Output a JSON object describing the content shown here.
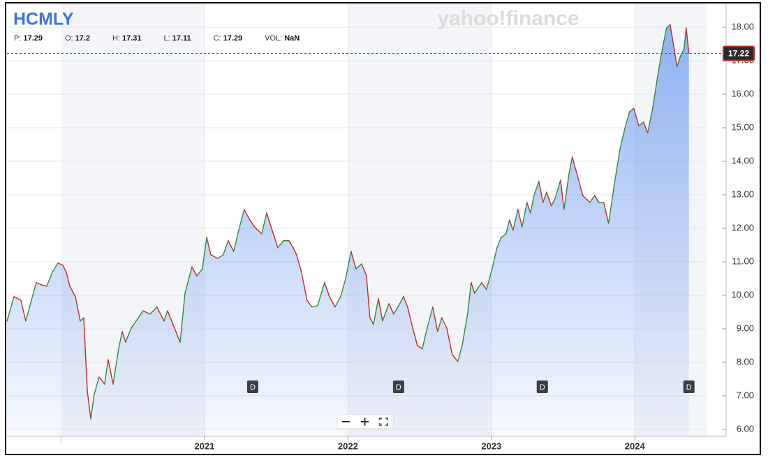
{
  "chart_data": {
    "type": "line",
    "title": "HCMLY",
    "watermark": "yahoo!finance",
    "quote": [
      {
        "label": "P:",
        "value": 17.29
      },
      {
        "label": "O:",
        "value": 17.2
      },
      {
        "label": "H:",
        "value": 17.31
      },
      {
        "label": "L:",
        "value": 17.11
      },
      {
        "label": "C:",
        "value": 17.29
      },
      {
        "label": "VOL:",
        "value": "NaN"
      }
    ],
    "last_price": 17.22,
    "up_color": "#2e8b3a",
    "down_color": "#c8281e",
    "area_color": "#6f9bf0",
    "last_price_color": "#c8281e",
    "grid": true,
    "xlim": [
      2019.623,
      2024.5
    ],
    "xticks": [
      2021,
      2022,
      2023,
      2024
    ],
    "ylim": [
      5.79,
      18.71
    ],
    "yticks": [
      {
        "value": 6,
        "label": "6.00"
      },
      {
        "value": 7,
        "label": "7.00"
      },
      {
        "value": 8,
        "label": "8.00"
      },
      {
        "value": 9,
        "label": "9.00"
      },
      {
        "value": 10,
        "label": "10.00"
      },
      {
        "value": 11,
        "label": "11.00"
      },
      {
        "value": 12,
        "label": "12.00"
      },
      {
        "value": 13,
        "label": "13.00"
      },
      {
        "value": 14,
        "label": "14.00"
      },
      {
        "value": 15,
        "label": "15.00"
      },
      {
        "value": 16,
        "label": "16.00"
      },
      {
        "value": 17,
        "label": "17.00"
      },
      {
        "value": 18,
        "label": "18.00"
      }
    ],
    "events": [
      {
        "x": 2021.336,
        "label": "D"
      },
      {
        "x": 2022.353,
        "label": "D"
      },
      {
        "x": 2023.355,
        "label": "D"
      },
      {
        "x": 2024.377,
        "label": "D"
      }
    ],
    "x": [
      2019.623,
      2019.672,
      2019.72,
      2019.754,
      2019.793,
      2019.827,
      2019.866,
      2019.9,
      2019.939,
      2019.978,
      2020.012,
      2020.037,
      2020.061,
      2020.1,
      2020.134,
      2020.158,
      2020.183,
      2020.207,
      2020.231,
      2020.265,
      2020.304,
      2020.328,
      2020.363,
      2020.401,
      2020.426,
      2020.45,
      2020.489,
      2020.523,
      2020.572,
      2020.62,
      2020.669,
      2020.718,
      2020.742,
      2020.791,
      2020.83,
      2020.864,
      2020.912,
      2020.946,
      2020.985,
      2021.015,
      2021.044,
      2021.092,
      2021.131,
      2021.165,
      2021.204,
      2021.238,
      2021.277,
      2021.316,
      2021.35,
      2021.399,
      2021.433,
      2021.472,
      2021.511,
      2021.55,
      2021.589,
      2021.618,
      2021.642,
      2021.676,
      2021.715,
      2021.749,
      2021.788,
      2021.837,
      2021.871,
      2021.91,
      2021.949,
      2021.983,
      2022.022,
      2022.056,
      2022.095,
      2022.129,
      2022.153,
      2022.178,
      2022.212,
      2022.241,
      2022.285,
      2022.319,
      2022.348,
      2022.387,
      2022.416,
      2022.445,
      2022.484,
      2022.518,
      2022.552,
      2022.591,
      2022.625,
      2022.654,
      2022.689,
      2022.727,
      2022.766,
      2022.796,
      2022.834,
      2022.859,
      2022.883,
      2022.932,
      2022.966,
      2023.005,
      2023.039,
      2023.068,
      2023.102,
      2023.126,
      2023.151,
      2023.185,
      2023.214,
      2023.248,
      2023.272,
      2023.297,
      2023.331,
      2023.36,
      2023.384,
      2023.418,
      2023.443,
      2023.482,
      2023.506,
      2023.54,
      2023.564,
      2023.598,
      2023.637,
      2023.686,
      2023.72,
      2023.749,
      2023.783,
      2023.817,
      2023.856,
      2023.895,
      2023.929,
      2023.963,
      2023.993,
      2024.027,
      2024.061,
      2024.09,
      2024.124,
      2024.158,
      2024.187,
      2024.221,
      2024.246,
      2024.27,
      2024.294,
      2024.319,
      2024.343,
      2024.358,
      2024.377
    ],
    "values": [
      9.23,
      9.96,
      9.85,
      9.23,
      9.85,
      10.38,
      10.31,
      10.27,
      10.69,
      10.96,
      10.9,
      10.69,
      10.27,
      9.96,
      9.23,
      9.33,
      7.15,
      6.31,
      7.04,
      7.56,
      7.35,
      8.08,
      7.35,
      8.4,
      8.92,
      8.6,
      9.02,
      9.23,
      9.54,
      9.44,
      9.65,
      9.23,
      9.54,
      9.02,
      8.6,
      10.06,
      10.85,
      10.58,
      10.79,
      11.73,
      11.21,
      11.1,
      11.21,
      11.63,
      11.31,
      11.94,
      12.56,
      12.25,
      12.04,
      11.83,
      12.46,
      11.94,
      11.42,
      11.63,
      11.63,
      11.42,
      11.21,
      10.69,
      9.85,
      9.65,
      9.69,
      10.38,
      9.96,
      9.65,
      9.96,
      10.48,
      11.31,
      10.79,
      10.94,
      10.58,
      9.33,
      9.13,
      9.9,
      9.23,
      9.75,
      9.44,
      9.65,
      9.96,
      9.65,
      9.13,
      8.5,
      8.4,
      9.02,
      9.65,
      8.92,
      9.33,
      9.02,
      8.23,
      8.02,
      8.5,
      9.44,
      10.38,
      10.06,
      10.38,
      10.17,
      10.79,
      11.42,
      11.73,
      11.83,
      12.25,
      11.94,
      12.56,
      12.04,
      12.77,
      12.46,
      12.98,
      13.4,
      12.77,
      13.08,
      12.67,
      12.88,
      13.44,
      12.56,
      13.6,
      14.13,
      13.6,
      12.98,
      12.77,
      12.98,
      12.77,
      12.77,
      12.15,
      13.29,
      14.33,
      14.96,
      15.48,
      15.58,
      15.06,
      15.17,
      14.85,
      15.58,
      16.52,
      17.25,
      17.98,
      18.08,
      17.46,
      16.83,
      17.15,
      17.35,
      17.98,
      17.22
    ]
  }
}
